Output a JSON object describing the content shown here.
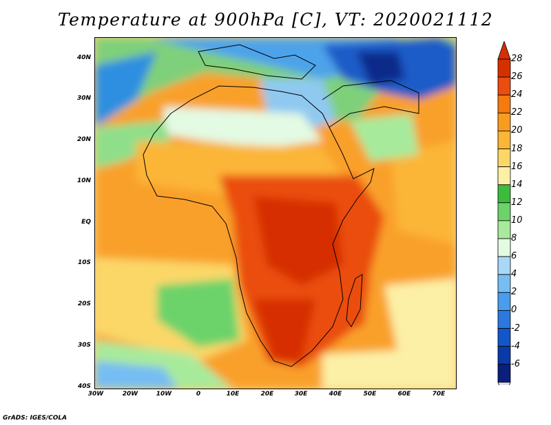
{
  "title": "Temperature at 900hPa [C], VT: 2020021112",
  "credit": "GrADS: IGES/COLA",
  "lat_labels": [
    "40N",
    "30N",
    "20N",
    "10N",
    "EQ",
    "10S",
    "20S",
    "30S",
    "40S"
  ],
  "lon_labels": [
    "30W",
    "20W",
    "10W",
    "0",
    "10E",
    "20E",
    "30E",
    "40E",
    "50E",
    "60E",
    "70E"
  ],
  "colorbar": {
    "labels": [
      "28",
      "26",
      "24",
      "22",
      "20",
      "18",
      "16",
      "14",
      "12",
      "10",
      "8",
      "6",
      "4",
      "2",
      "0",
      "-2",
      "-4",
      "-6"
    ],
    "colors": [
      "#d62f00",
      "#ea4d0e",
      "#f57a10",
      "#f89c1f",
      "#fbb637",
      "#fbd768",
      "#fcf0a6",
      "#3cbb3c",
      "#6cd36a",
      "#a8ea9b",
      "#e3fae3",
      "#a9d7f8",
      "#76bdf3",
      "#4a9ced",
      "#2b78df",
      "#1257c9",
      "#0a3aa8",
      "#0a1e7c"
    ],
    "min_color": "#dcdcf8",
    "max_color": "#d62f00"
  }
}
